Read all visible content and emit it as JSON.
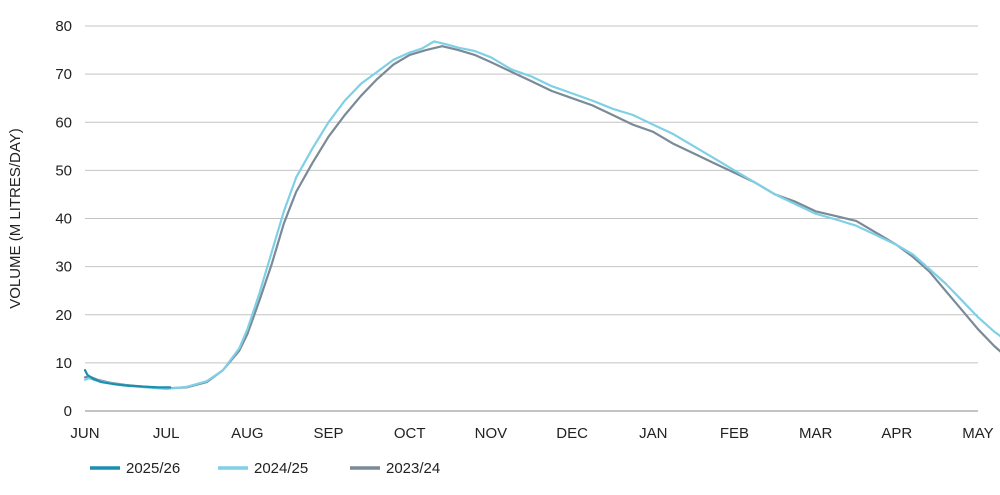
{
  "chart_data": {
    "type": "line",
    "title": "",
    "xlabel": "",
    "ylabel": "VOLUME (M LITRES/DAY)",
    "ylim": [
      0,
      80
    ],
    "yticks": [
      0,
      10,
      20,
      30,
      40,
      50,
      60,
      70,
      80
    ],
    "categories": [
      "JUN",
      "JUL",
      "AUG",
      "SEP",
      "OCT",
      "NOV",
      "DEC",
      "JAN",
      "FEB",
      "MAR",
      "APR",
      "MAY"
    ],
    "grid": true,
    "legend_position": "bottom-left",
    "series": [
      {
        "name": "2025/26",
        "color": "#1a8fb0",
        "points": [
          [
            0,
            8.5
          ],
          [
            0.03,
            7.5
          ],
          [
            0.1,
            6.7
          ],
          [
            0.2,
            6.0
          ],
          [
            0.35,
            5.6
          ],
          [
            0.5,
            5.3
          ],
          [
            0.7,
            5.1
          ],
          [
            0.9,
            4.9
          ],
          [
            1.05,
            4.9
          ]
        ]
      },
      {
        "name": "2024/25",
        "color": "#7fd0e6",
        "points": [
          [
            0,
            6.5
          ],
          [
            0.05,
            6.8
          ],
          [
            0.15,
            6.3
          ],
          [
            0.3,
            5.8
          ],
          [
            0.5,
            5.3
          ],
          [
            0.75,
            4.9
          ],
          [
            1.0,
            4.6
          ],
          [
            1.25,
            5.0
          ],
          [
            1.5,
            6.2
          ],
          [
            1.7,
            8.5
          ],
          [
            1.9,
            13.0
          ],
          [
            2.0,
            17.0
          ],
          [
            2.15,
            24.5
          ],
          [
            2.3,
            33.0
          ],
          [
            2.45,
            41.5
          ],
          [
            2.6,
            48.5
          ],
          [
            2.8,
            54.5
          ],
          [
            3.0,
            60.0
          ],
          [
            3.2,
            64.5
          ],
          [
            3.4,
            68.0
          ],
          [
            3.6,
            70.5
          ],
          [
            3.8,
            73.0
          ],
          [
            4.0,
            74.5
          ],
          [
            4.15,
            75.3
          ],
          [
            4.3,
            76.8
          ],
          [
            4.45,
            76.2
          ],
          [
            4.6,
            75.5
          ],
          [
            4.8,
            74.8
          ],
          [
            5.0,
            73.5
          ],
          [
            5.25,
            71.0
          ],
          [
            5.5,
            69.5
          ],
          [
            5.75,
            67.5
          ],
          [
            6.0,
            66.0
          ],
          [
            6.25,
            64.5
          ],
          [
            6.5,
            62.8
          ],
          [
            6.75,
            61.5
          ],
          [
            7.0,
            59.5
          ],
          [
            7.25,
            57.5
          ],
          [
            7.5,
            55.0
          ],
          [
            7.75,
            52.5
          ],
          [
            8.0,
            50.0
          ],
          [
            8.25,
            47.5
          ],
          [
            8.5,
            45.0
          ],
          [
            8.75,
            43.0
          ],
          [
            9.0,
            41.0
          ],
          [
            9.25,
            39.8
          ],
          [
            9.5,
            38.5
          ],
          [
            9.75,
            36.5
          ],
          [
            10.0,
            34.5
          ],
          [
            10.2,
            32.5
          ],
          [
            10.4,
            29.5
          ],
          [
            10.6,
            26.5
          ],
          [
            10.8,
            23.0
          ],
          [
            11.0,
            19.5
          ],
          [
            11.2,
            16.5
          ],
          [
            11.4,
            14.0
          ],
          [
            11.5,
            12.5
          ],
          [
            11.55,
            13.5
          ]
        ]
      },
      {
        "name": "2023/24",
        "color": "#7a8a96",
        "points": [
          [
            0,
            7.0
          ],
          [
            0.05,
            7.2
          ],
          [
            0.15,
            6.5
          ],
          [
            0.3,
            5.9
          ],
          [
            0.5,
            5.4
          ],
          [
            0.75,
            5.0
          ],
          [
            1.0,
            4.7
          ],
          [
            1.25,
            4.9
          ],
          [
            1.5,
            6.0
          ],
          [
            1.7,
            8.5
          ],
          [
            1.9,
            12.5
          ],
          [
            2.0,
            16.0
          ],
          [
            2.15,
            23.0
          ],
          [
            2.3,
            30.5
          ],
          [
            2.45,
            39.0
          ],
          [
            2.6,
            45.5
          ],
          [
            2.8,
            51.5
          ],
          [
            3.0,
            57.0
          ],
          [
            3.2,
            61.5
          ],
          [
            3.4,
            65.5
          ],
          [
            3.6,
            69.0
          ],
          [
            3.8,
            72.0
          ],
          [
            4.0,
            74.0
          ],
          [
            4.2,
            75.0
          ],
          [
            4.4,
            75.8
          ],
          [
            4.6,
            75.0
          ],
          [
            4.8,
            74.0
          ],
          [
            5.0,
            72.5
          ],
          [
            5.25,
            70.5
          ],
          [
            5.5,
            68.5
          ],
          [
            5.75,
            66.5
          ],
          [
            6.0,
            65.0
          ],
          [
            6.25,
            63.5
          ],
          [
            6.5,
            61.5
          ],
          [
            6.75,
            59.5
          ],
          [
            7.0,
            58.0
          ],
          [
            7.25,
            55.5
          ],
          [
            7.5,
            53.5
          ],
          [
            7.75,
            51.5
          ],
          [
            8.0,
            49.5
          ],
          [
            8.25,
            47.5
          ],
          [
            8.5,
            45.0
          ],
          [
            8.75,
            43.5
          ],
          [
            9.0,
            41.5
          ],
          [
            9.25,
            40.5
          ],
          [
            9.5,
            39.5
          ],
          [
            9.75,
            37.0
          ],
          [
            10.0,
            34.5
          ],
          [
            10.2,
            32.0
          ],
          [
            10.4,
            29.0
          ],
          [
            10.6,
            25.0
          ],
          [
            10.8,
            21.0
          ],
          [
            11.0,
            17.0
          ],
          [
            11.2,
            13.5
          ],
          [
            11.4,
            10.5
          ],
          [
            11.5,
            9.0
          ],
          [
            11.55,
            10.0
          ]
        ]
      }
    ]
  }
}
